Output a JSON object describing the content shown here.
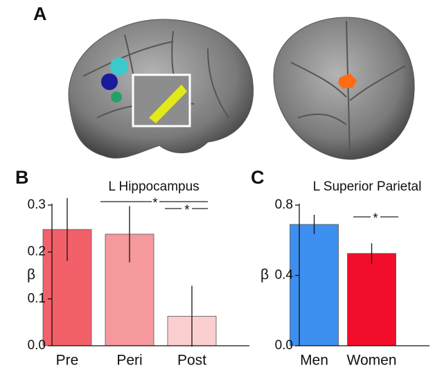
{
  "panel_label": "A",
  "chart_data": [
    {
      "type": "bar",
      "label": "B",
      "title": "L Hippocampus",
      "ylabel": "β",
      "categories": [
        "Pre",
        "Peri",
        "Post"
      ],
      "values": [
        0.248,
        0.238,
        0.063
      ],
      "errors": [
        0.067,
        0.06,
        0.065
      ],
      "colors": [
        "#f2616a",
        "#f5999c",
        "#fbcfd0"
      ],
      "ylim": [
        0,
        0.3
      ],
      "yticks": [
        {
          "value": 0,
          "label": "0.0"
        },
        0.1,
        0.2,
        0.3
      ],
      "annotations": [
        "*",
        "*"
      ]
    },
    {
      "type": "bar",
      "label": "C",
      "title": "L Superior Parietal",
      "ylabel": "β",
      "categories": [
        "Men",
        "Women"
      ],
      "values": [
        0.69,
        0.525
      ],
      "errors": [
        0.055,
        0.058
      ],
      "colors": [
        "#3d8ff0",
        "#f20d2a"
      ],
      "ylim": [
        0,
        0.8
      ],
      "yticks": [
        {
          "value": 0,
          "label": "0.0"
        },
        0.4,
        0.8
      ],
      "annotations": [
        "*"
      ]
    }
  ]
}
